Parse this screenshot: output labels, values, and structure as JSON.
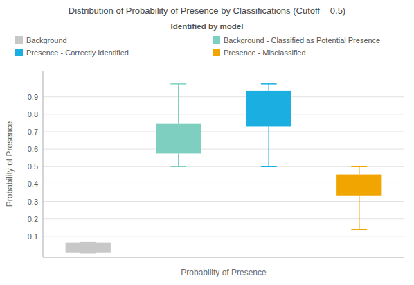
{
  "chart_data": {
    "type": "box",
    "title": "Distribution of Probability of Presence by Classifications (Cutoff = 0.5)",
    "x_label": "Probability of Presence",
    "y_label": "Probability of Presence",
    "legend_title": "Identified by model",
    "ylim": [
      -0.02,
      1.05
    ],
    "yticks": [
      0.1,
      0.2,
      0.3,
      0.4,
      0.5,
      0.6,
      0.7,
      0.8,
      0.9
    ],
    "grid": true,
    "legend": "top",
    "series": [
      {
        "name": "Background",
        "color": "#c8c8c8",
        "q1": 0.005,
        "q3": 0.065,
        "whisker_low": 0.005,
        "whisker_high": 0.065
      },
      {
        "name": "Background - Classified as Potential Presence",
        "color": "#7ecfc0",
        "q1": 0.575,
        "q3": 0.745,
        "whisker_low": 0.5,
        "whisker_high": 0.975
      },
      {
        "name": "Presence - Correctly Identified",
        "color": "#1aafe0",
        "q1": 0.73,
        "q3": 0.935,
        "whisker_low": 0.5,
        "whisker_high": 0.975
      },
      {
        "name": "Presence - Misclassified",
        "color": "#f0a500",
        "q1": 0.335,
        "q3": 0.455,
        "whisker_low": 0.14,
        "whisker_high": 0.5
      }
    ]
  }
}
